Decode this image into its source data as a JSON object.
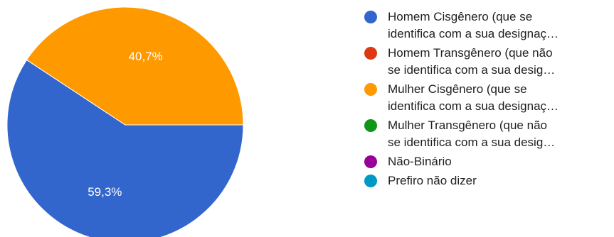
{
  "chart_data": {
    "type": "pie",
    "categories": [
      "Homem Cisgênero (que se identifica com a sua designaç…",
      "Homem Transgênero (que não se identifica com a sua desig…",
      "Mulher Cisgênero (que se identifica com a sua designaç…",
      "Mulher Transgênero (que não se identifica com a sua desig…",
      "Não-Binário",
      "Prefiro não dizer"
    ],
    "values": [
      59.3,
      0,
      40.7,
      0,
      0,
      0
    ],
    "value_labels": [
      "59,3%",
      "",
      "40,7%",
      "",
      "",
      ""
    ],
    "colors": [
      "#3366cc",
      "#dc3912",
      "#ff9900",
      "#109618",
      "#990099",
      "#0099c6"
    ],
    "legend_placement": "right"
  },
  "legend": {
    "items": [
      {
        "label": "Homem Cisgênero (que se\nidentifica com a sua designaç…",
        "color": "#3366cc"
      },
      {
        "label": "Homem Transgênero (que não\nse identifica com a sua desig…",
        "color": "#dc3912"
      },
      {
        "label": "Mulher Cisgênero (que se\nidentifica com a sua designaç…",
        "color": "#ff9900"
      },
      {
        "label": "Mulher Transgênero (que não\nse identifica com a sua desig…",
        "color": "#109618"
      },
      {
        "label": "Não-Binário",
        "color": "#990099"
      },
      {
        "label": "Prefiro não dizer",
        "color": "#0099c6"
      }
    ]
  }
}
